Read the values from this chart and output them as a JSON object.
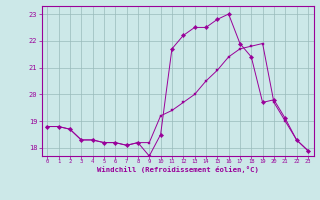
{
  "hours": [
    0,
    1,
    2,
    3,
    4,
    5,
    6,
    7,
    8,
    9,
    10,
    11,
    12,
    13,
    14,
    15,
    16,
    17,
    18,
    19,
    20,
    21,
    22,
    23
  ],
  "temp": [
    18.8,
    18.8,
    18.7,
    18.3,
    18.3,
    18.2,
    18.2,
    18.1,
    18.2,
    18.2,
    19.2,
    19.4,
    19.7,
    20.0,
    20.5,
    20.9,
    21.4,
    21.7,
    21.8,
    21.9,
    19.7,
    19.0,
    18.3,
    17.9
  ],
  "windchill": [
    18.8,
    18.8,
    18.7,
    18.3,
    18.3,
    18.2,
    18.2,
    18.1,
    18.2,
    17.7,
    18.5,
    21.7,
    22.2,
    22.5,
    22.5,
    22.8,
    23.0,
    21.9,
    21.4,
    19.7,
    19.8,
    19.1,
    18.3,
    17.9
  ],
  "line_color": "#990099",
  "bg_color": "#cce8e8",
  "grid_color": "#99bbbb",
  "axis_color": "#990099",
  "xlabel": "Windchill (Refroidissement éolien,°C)",
  "ylim": [
    17.7,
    23.3
  ],
  "xlim": [
    -0.5,
    23.5
  ],
  "yticks": [
    18,
    19,
    20,
    21,
    22,
    23
  ],
  "xticks": [
    0,
    1,
    2,
    3,
    4,
    5,
    6,
    7,
    8,
    9,
    10,
    11,
    12,
    13,
    14,
    15,
    16,
    17,
    18,
    19,
    20,
    21,
    22,
    23
  ]
}
